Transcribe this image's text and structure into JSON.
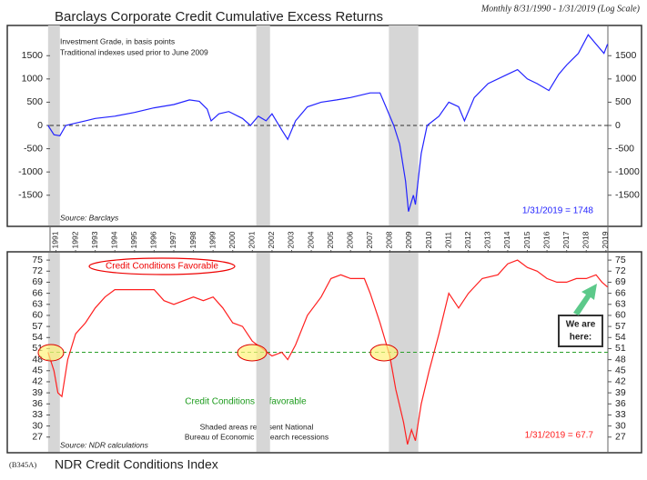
{
  "chart_data": [
    {
      "type": "line",
      "title": "Barclays Corporate Credit Cumulative Excess Returns",
      "subtitle": "Monthly 8/31/1990 - 1/31/2019 (Log Scale)",
      "notes": [
        "Investment Grade, in basis points",
        "Traditional indexes used prior to June 2009"
      ],
      "source": "Source: Barclays",
      "end_label": "1/31/2019 = 1748",
      "color": "#2323ff",
      "reference_line": 0,
      "recessions": [
        [
          1990.6,
          1991.2
        ],
        [
          2001.2,
          2001.9
        ],
        [
          2007.95,
          2009.45
        ]
      ],
      "xlim": [
        1990.7,
        2019.1
      ],
      "ylim": [
        -2150,
        2150
      ],
      "yticks": [
        1500,
        1000,
        500,
        0,
        -500,
        -1000,
        -1500
      ],
      "x": [
        1990.6,
        1990.9,
        1991.2,
        1991.5,
        1992,
        1992.5,
        1993,
        1994,
        1995,
        1996,
        1997,
        1997.8,
        1998.3,
        1998.7,
        1998.9,
        1999.3,
        1999.8,
        2000.5,
        2000.9,
        2001.3,
        2001.7,
        2002,
        2002.5,
        2002.8,
        2003.2,
        2003.8,
        2004.5,
        2005.3,
        2006,
        2007,
        2007.5,
        2007.8,
        2008.2,
        2008.5,
        2008.8,
        2008.95,
        2009.2,
        2009.3,
        2009.6,
        2009.9,
        2010.5,
        2011,
        2011.5,
        2011.8,
        2012.3,
        2013,
        2014,
        2014.5,
        2015,
        2015.5,
        2016.1,
        2016.6,
        2017,
        2017.6,
        2018.1,
        2018.5,
        2018.9,
        2019.08
      ],
      "values": [
        0,
        -200,
        -220,
        0,
        50,
        100,
        150,
        200,
        280,
        380,
        450,
        550,
        520,
        350,
        100,
        250,
        300,
        150,
        0,
        200,
        100,
        250,
        -100,
        -300,
        100,
        400,
        500,
        550,
        600,
        700,
        700,
        400,
        0,
        -400,
        -1200,
        -1850,
        -1500,
        -1700,
        -600,
        0,
        200,
        500,
        400,
        100,
        600,
        900,
        1100,
        1200,
        1000,
        900,
        750,
        1100,
        1300,
        1550,
        1950,
        1750,
        1550,
        1748
      ]
    },
    {
      "type": "line",
      "title": "NDR Credit Conditions Index",
      "code": "(B345A)",
      "favorable_label": "Credit Conditions Favorable",
      "unfavorable_label": "Credit Conditions Unfavorable",
      "notes": [
        "Shaded areas represent National",
        "Bureau of Economic Research recessions"
      ],
      "source": "Source: NDR calculations",
      "end_label": "1/31/2019 = 67.7",
      "callout": [
        "We are",
        "here:"
      ],
      "color": "#ff2020",
      "threshold": 50,
      "xlim": [
        1990.7,
        2019.1
      ],
      "xticks": [
        1991,
        1992,
        1993,
        1994,
        1995,
        1996,
        1997,
        1998,
        1999,
        2000,
        2001,
        2002,
        2003,
        2004,
        2005,
        2006,
        2007,
        2008,
        2009,
        2010,
        2011,
        2012,
        2013,
        2014,
        2015,
        2016,
        2017,
        2018,
        2019
      ],
      "ylim": [
        23,
        77
      ],
      "yticks": [
        75,
        72,
        69,
        66,
        63,
        60,
        57,
        54,
        51,
        48,
        45,
        42,
        39,
        36,
        33,
        30,
        27
      ],
      "x": [
        1990.6,
        1990.9,
        1991.1,
        1991.3,
        1991.6,
        1992,
        1992.5,
        1993,
        1993.5,
        1994,
        1995,
        1996,
        1996.5,
        1997,
        1998,
        1998.5,
        1999,
        1999.5,
        2000,
        2000.5,
        2001,
        2001.5,
        2002,
        2002.5,
        2002.8,
        2003.2,
        2003.8,
        2004.5,
        2005,
        2005.5,
        2006,
        2006.7,
        2007,
        2007.5,
        2008,
        2008.3,
        2008.7,
        2008.9,
        2009.1,
        2009.3,
        2009.6,
        2010,
        2010.5,
        2011,
        2011.5,
        2012,
        2012.7,
        2013.5,
        2014,
        2014.5,
        2015,
        2015.5,
        2016,
        2016.5,
        2017,
        2017.5,
        2018,
        2018.5,
        2018.8,
        2019.08
      ],
      "values": [
        50,
        45,
        39,
        38,
        48,
        55,
        58,
        62,
        65,
        67,
        67,
        67,
        64,
        63,
        65,
        64,
        65,
        62,
        58,
        57,
        53,
        51,
        49,
        50,
        48,
        52,
        60,
        65,
        70,
        71,
        70,
        70,
        66,
        58,
        49,
        40,
        31,
        25,
        29,
        26,
        36,
        45,
        55,
        66,
        62,
        66,
        70,
        71,
        74,
        75,
        73,
        72,
        70,
        69,
        69,
        70,
        70,
        71,
        69,
        67.7
      ]
    }
  ]
}
